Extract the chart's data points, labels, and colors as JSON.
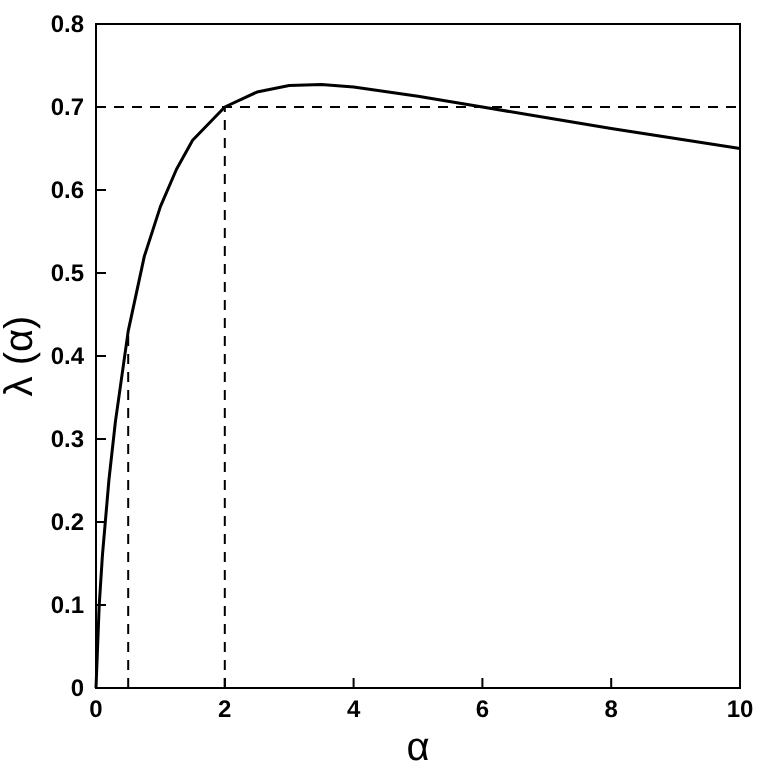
{
  "chart_data": {
    "type": "line",
    "xlabel": "α",
    "ylabel": "λ (α)",
    "x": [
      0,
      0.05,
      0.1,
      0.2,
      0.3,
      0.5,
      0.75,
      1,
      1.25,
      1.5,
      2,
      2.5,
      3,
      3.5,
      4,
      5,
      6,
      7,
      8,
      9,
      10
    ],
    "series": [
      {
        "color": "#000000",
        "values": [
          0,
          0.1,
          0.16,
          0.25,
          0.32,
          0.43,
          0.52,
          0.58,
          0.625,
          0.66,
          0.7,
          0.718,
          0.726,
          0.727,
          0.724,
          0.713,
          0.7,
          0.687,
          0.674,
          0.662,
          0.65
        ]
      }
    ],
    "xlim": [
      0,
      10
    ],
    "xticks": [
      0,
      2,
      4,
      6,
      8,
      10
    ],
    "ylim": [
      0,
      0.8
    ],
    "yticks": [
      0,
      0.1,
      0.2,
      0.3,
      0.4,
      0.5,
      0.6,
      0.7,
      0.8
    ],
    "ref_lines": [
      {
        "axis": "y",
        "value": 0.7,
        "line_style": "dashed",
        "color": "#000000"
      },
      {
        "axis": "x",
        "value": 0.5,
        "line_style": "dashed",
        "color": "#000000"
      },
      {
        "axis": "x",
        "value": 2,
        "line_style": "dashed",
        "color": "#000000"
      }
    ],
    "marker": "none",
    "line_style": "solid"
  }
}
